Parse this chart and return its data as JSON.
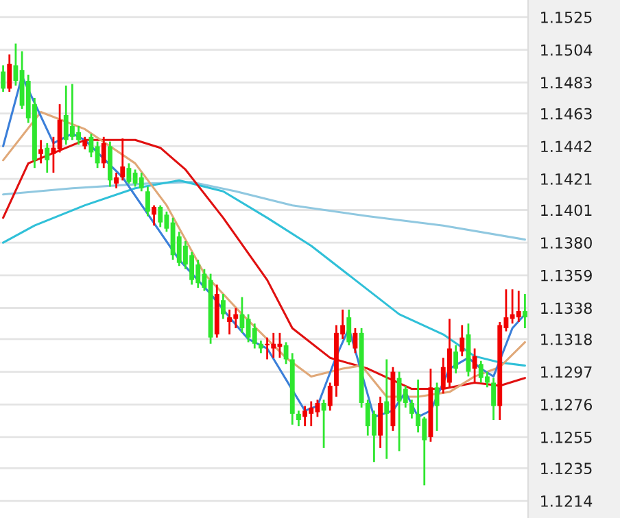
{
  "chart_data": {
    "type": "candlestick",
    "categories": [
      null,
      null,
      null,
      null,
      null,
      null,
      null,
      null,
      null,
      null,
      null,
      null,
      null,
      null,
      null,
      null,
      null,
      null,
      null,
      null,
      null,
      null,
      null,
      null,
      null,
      null,
      null,
      null,
      null,
      null,
      null,
      null,
      null,
      null,
      null,
      null,
      null,
      null,
      null,
      null,
      null,
      null,
      null,
      null,
      null,
      null,
      null,
      null,
      null,
      null,
      null,
      null,
      null,
      null,
      null,
      null,
      null,
      null,
      null,
      null,
      null,
      null,
      null,
      null,
      null,
      null,
      null,
      null,
      null,
      null,
      null,
      null,
      null,
      null,
      null,
      null,
      null,
      null,
      null,
      null,
      null,
      null,
      null,
      null
    ],
    "ohlc": [
      [
        1.149,
        1.1494,
        1.1477,
        1.1479
      ],
      [
        1.1479,
        1.1501,
        1.1477,
        1.1495
      ],
      [
        1.1494,
        1.1508,
        1.1481,
        1.1484
      ],
      [
        1.1491,
        1.1503,
        1.1466,
        1.1468
      ],
      [
        1.1484,
        1.1488,
        1.1457,
        1.146
      ],
      [
        1.1469,
        1.1473,
        1.1428,
        1.1433
      ],
      [
        1.1437,
        1.1446,
        1.1431,
        1.144
      ],
      [
        1.1441,
        1.1444,
        1.1425,
        1.1433
      ],
      [
        1.1437,
        1.1448,
        1.1425,
        1.1441
      ],
      [
        1.144,
        1.1469,
        1.1438,
        1.1459
      ],
      [
        1.1462,
        1.1481,
        1.1443,
        1.1446
      ],
      [
        1.1455,
        1.1482,
        1.1446,
        1.1448
      ],
      [
        1.1451,
        1.1455,
        1.1443,
        1.1446
      ],
      [
        1.1442,
        1.1448,
        1.144,
        1.1446
      ],
      [
        1.1448,
        1.145,
        1.1435,
        1.1438
      ],
      [
        1.1442,
        1.1445,
        1.1428,
        1.1431
      ],
      [
        1.1431,
        1.1448,
        1.1428,
        1.1444
      ],
      [
        1.1442,
        1.1445,
        1.1416,
        1.142
      ],
      [
        1.1418,
        1.1425,
        1.1415,
        1.1422
      ],
      [
        1.1422,
        1.1447,
        1.142,
        1.1429
      ],
      [
        1.1428,
        1.1431,
        1.1418,
        1.1419
      ],
      [
        1.1425,
        1.1427,
        1.1416,
        1.1418
      ],
      [
        1.1422,
        1.1425,
        1.1413,
        1.1415
      ],
      [
        1.1413,
        1.1416,
        1.1397,
        1.14
      ],
      [
        1.1398,
        1.1404,
        1.1391,
        1.1403
      ],
      [
        1.1403,
        1.1404,
        1.139,
        1.1393
      ],
      [
        1.1398,
        1.14,
        1.1387,
        1.1389
      ],
      [
        1.1393,
        1.1396,
        1.1369,
        1.1372
      ],
      [
        1.1384,
        1.1387,
        1.1365,
        1.1367
      ],
      [
        1.1378,
        1.1381,
        1.1363,
        1.1366
      ],
      [
        1.1372,
        1.1374,
        1.1353,
        1.1356
      ],
      [
        1.1366,
        1.1369,
        1.1351,
        1.1354
      ],
      [
        1.136,
        1.1363,
        1.1349,
        1.1351
      ],
      [
        1.1356,
        1.136,
        1.1315,
        1.1319
      ],
      [
        1.1321,
        1.1353,
        1.1319,
        1.1347
      ],
      [
        1.1343,
        1.1347,
        1.1331,
        1.1334
      ],
      [
        1.1329,
        1.1337,
        1.1321,
        1.1332
      ],
      [
        1.1331,
        1.1338,
        1.1325,
        1.1334
      ],
      [
        1.1334,
        1.1345,
        1.1322,
        1.1325
      ],
      [
        1.1331,
        1.1334,
        1.1316,
        1.1319
      ],
      [
        1.1325,
        1.1328,
        1.1312,
        1.1315
      ],
      [
        1.1315,
        1.1317,
        1.1309,
        1.1312
      ],
      [
        1.1314,
        1.1319,
        1.1305,
        1.1315
      ],
      [
        1.1312,
        1.1322,
        1.1306,
        1.1315
      ],
      [
        1.1313,
        1.1322,
        1.1306,
        1.1315
      ],
      [
        1.1314,
        1.1316,
        1.1302,
        1.1305
      ],
      [
        1.1305,
        1.1309,
        1.1263,
        1.127
      ],
      [
        1.127,
        1.1272,
        1.1262,
        1.1266
      ],
      [
        1.1268,
        1.1275,
        1.1262,
        1.1272
      ],
      [
        1.127,
        1.1278,
        1.1262,
        1.1274
      ],
      [
        1.1271,
        1.1279,
        1.1268,
        1.1277
      ],
      [
        1.1277,
        1.1279,
        1.1248,
        1.1272
      ],
      [
        1.1275,
        1.129,
        1.1272,
        1.1288
      ],
      [
        1.1288,
        1.1327,
        1.1281,
        1.1322
      ],
      [
        1.1321,
        1.1337,
        1.1318,
        1.1327
      ],
      [
        1.1332,
        1.1337,
        1.1314,
        1.1316
      ],
      [
        1.1312,
        1.1325,
        1.1309,
        1.1322
      ],
      [
        1.1322,
        1.1325,
        1.1274,
        1.1277
      ],
      [
        1.1277,
        1.1279,
        1.1256,
        1.1262
      ],
      [
        1.127,
        1.1272,
        1.1239,
        1.1256
      ],
      [
        1.1256,
        1.1281,
        1.1248,
        1.1277
      ],
      [
        1.1278,
        1.1305,
        1.1241,
        1.127
      ],
      [
        1.1262,
        1.13,
        1.1259,
        1.1297
      ],
      [
        1.1293,
        1.1297,
        1.1246,
        1.1278
      ],
      [
        1.1286,
        1.1288,
        1.1274,
        1.1277
      ],
      [
        1.1277,
        1.1279,
        1.1267,
        1.127
      ],
      [
        1.127,
        1.1292,
        1.1258,
        1.1262
      ],
      [
        1.1267,
        1.1268,
        1.1224,
        1.1253
      ],
      [
        1.1255,
        1.1299,
        1.1252,
        1.1287
      ],
      [
        1.1287,
        1.129,
        1.1259,
        1.1275
      ],
      [
        1.1286,
        1.1306,
        1.1283,
        1.13
      ],
      [
        1.129,
        1.1331,
        1.1287,
        1.1312
      ],
      [
        1.131,
        1.1314,
        1.1296,
        1.1299
      ],
      [
        1.131,
        1.1327,
        1.1307,
        1.1319
      ],
      [
        1.1321,
        1.1328,
        1.1294,
        1.1297
      ],
      [
        1.1299,
        1.1312,
        1.129,
        1.1307
      ],
      [
        1.1302,
        1.1304,
        1.129,
        1.1293
      ],
      [
        1.1294,
        1.1297,
        1.1287,
        1.129
      ],
      [
        1.129,
        1.1293,
        1.1266,
        1.1275
      ],
      [
        1.1275,
        1.1329,
        1.1266,
        1.1327
      ],
      [
        1.1325,
        1.135,
        1.1323,
        1.1332
      ],
      [
        1.1331,
        1.135,
        1.1328,
        1.1334
      ],
      [
        1.1332,
        1.1349,
        1.1329,
        1.1336
      ],
      [
        1.1336,
        1.1347,
        1.1325,
        1.1332
      ]
    ],
    "colors": [
      "#2ee62e",
      "#f00000",
      "#2ee62e",
      "#2ee62e",
      "#2ee62e",
      "#2ee62e",
      "#f00000",
      "#2ee62e",
      "#f00000",
      "#f00000",
      "#2ee62e",
      "#2ee62e",
      "#2ee62e",
      "#f00000",
      "#2ee62e",
      "#2ee62e",
      "#f00000",
      "#2ee62e",
      "#f00000",
      "#f00000",
      "#2ee62e",
      "#2ee62e",
      "#2ee62e",
      "#2ee62e",
      "#f00000",
      "#2ee62e",
      "#2ee62e",
      "#2ee62e",
      "#2ee62e",
      "#2ee62e",
      "#2ee62e",
      "#2ee62e",
      "#2ee62e",
      "#2ee62e",
      "#f00000",
      "#2ee62e",
      "#f00000",
      "#f00000",
      "#2ee62e",
      "#2ee62e",
      "#2ee62e",
      "#2ee62e",
      "#f00000",
      "#f00000",
      "#f00000",
      "#2ee62e",
      "#2ee62e",
      "#2ee62e",
      "#f00000",
      "#f00000",
      "#f00000",
      "#2ee62e",
      "#f00000",
      "#f00000",
      "#f00000",
      "#2ee62e",
      "#f00000",
      "#2ee62e",
      "#2ee62e",
      "#2ee62e",
      "#f00000",
      "#2ee62e",
      "#f00000",
      "#2ee62e",
      "#2ee62e",
      "#2ee62e",
      "#2ee62e",
      "#2ee62e",
      "#f00000",
      "#2ee62e",
      "#f00000",
      "#f00000",
      "#2ee62e",
      "#f00000",
      "#2ee62e",
      "#f00000",
      "#2ee62e",
      "#2ee62e",
      "#2ee62e",
      "#f00000",
      "#f00000",
      "#f00000",
      "#f00000",
      "#2ee62e"
    ],
    "series": [
      {
        "type": "line",
        "color": "#90c8e0",
        "values": [
          1.1411,
          null,
          null,
          null,
          null,
          null,
          null,
          null,
          null,
          null,
          null,
          1.1415,
          null,
          null,
          null,
          null,
          null,
          null,
          null,
          null,
          null,
          null,
          null,
          1.1418,
          null,
          null,
          null,
          null,
          null,
          null,
          1.1419,
          null,
          null,
          null,
          null,
          null,
          null,
          1.1413,
          null,
          null,
          null,
          null,
          null,
          null,
          null,
          null,
          1.1404,
          null,
          null,
          null,
          null,
          null,
          null,
          null,
          null,
          null,
          null,
          null,
          1.1397,
          null,
          null,
          null,
          null,
          null,
          null,
          null,
          null,
          null,
          null,
          null,
          1.1391,
          null,
          null,
          null,
          null,
          null,
          null,
          null,
          null,
          null,
          null,
          null,
          null,
          1.1382
        ]
      },
      {
        "type": "line",
        "color": "#30c0d8",
        "values": [
          1.138,
          null,
          null,
          null,
          null,
          1.1391,
          null,
          null,
          null,
          null,
          null,
          null,
          null,
          1.1404,
          null,
          null,
          null,
          null,
          null,
          null,
          null,
          1.1415,
          null,
          null,
          null,
          null,
          null,
          null,
          1.142,
          null,
          null,
          null,
          null,
          null,
          null,
          1.1413,
          null,
          null,
          null,
          null,
          null,
          null,
          1.1396,
          null,
          null,
          null,
          null,
          null,
          null,
          1.1378,
          null,
          null,
          null,
          null,
          null,
          null,
          1.1356,
          null,
          null,
          null,
          null,
          null,
          null,
          1.1334,
          null,
          null,
          null,
          null,
          null,
          null,
          1.1321,
          null,
          null,
          null,
          null,
          1.1307,
          null,
          null,
          null,
          1.1303,
          null,
          null,
          null,
          1.1301
        ]
      },
      {
        "type": "line",
        "color": "#e01010",
        "values": [
          1.1396,
          null,
          null,
          null,
          1.1431,
          null,
          null,
          null,
          null,
          null,
          null,
          null,
          null,
          1.1446,
          null,
          null,
          null,
          null,
          null,
          null,
          null,
          1.1446,
          null,
          null,
          null,
          1.1441,
          null,
          null,
          null,
          1.1427,
          null,
          null,
          null,
          null,
          null,
          1.1396,
          null,
          null,
          null,
          null,
          null,
          null,
          1.1356,
          null,
          null,
          null,
          1.1325,
          null,
          null,
          null,
          null,
          null,
          1.1306,
          null,
          null,
          null,
          null,
          null,
          1.1299,
          null,
          null,
          null,
          null,
          null,
          null,
          1.1286,
          null,
          null,
          null,
          null,
          1.1286,
          null,
          null,
          null,
          null,
          1.129,
          null,
          null,
          null,
          1.1288,
          null,
          null,
          null,
          1.1293
        ]
      },
      {
        "type": "line",
        "color": "#e0a878",
        "values": [
          1.1433,
          null,
          null,
          null,
          null,
          null,
          1.1464,
          null,
          null,
          null,
          null,
          null,
          null,
          1.1453,
          null,
          null,
          null,
          null,
          null,
          null,
          null,
          1.1431,
          null,
          null,
          null,
          null,
          1.1404,
          null,
          null,
          null,
          null,
          null,
          1.136,
          null,
          null,
          null,
          null,
          null,
          1.1334,
          null,
          null,
          null,
          null,
          null,
          null,
          1.1306,
          null,
          null,
          null,
          1.1294,
          null,
          null,
          null,
          null,
          1.1299,
          null,
          null,
          1.1301,
          null,
          null,
          null,
          1.1281,
          null,
          null,
          null,
          null,
          1.1281,
          null,
          null,
          null,
          null,
          1.1284,
          null,
          null,
          null,
          1.1294,
          null,
          null,
          null,
          1.13,
          null,
          null,
          null,
          1.1316
        ]
      },
      {
        "type": "line",
        "color": "#3b7fd9",
        "values": [
          1.1442,
          null,
          null,
          1.1487,
          null,
          null,
          null,
          null,
          1.1444,
          null,
          null,
          1.145,
          null,
          1.1446,
          null,
          null,
          null,
          null,
          null,
          1.1422,
          null,
          null,
          null,
          null,
          null,
          null,
          null,
          null,
          1.1369,
          null,
          null,
          null,
          null,
          1.1347,
          null,
          null,
          1.1332,
          null,
          null,
          1.1318,
          null,
          null,
          1.1312,
          null,
          null,
          null,
          null,
          null,
          1.1272,
          null,
          1.1275,
          null,
          null,
          1.1307,
          null,
          1.1325,
          null,
          null,
          null,
          1.1268,
          null,
          null,
          1.1272,
          null,
          1.1284,
          null,
          1.1268,
          null,
          1.1272,
          null,
          null,
          1.1299,
          null,
          null,
          1.1306,
          null,
          1.1299,
          null,
          1.1294,
          null,
          null,
          1.1325,
          null,
          1.1334
        ]
      }
    ],
    "ylim": [
      1.1203,
      1.1536
    ],
    "yticks": [
      1.1214,
      1.1235,
      1.1255,
      1.1276,
      1.1297,
      1.1318,
      1.1338,
      1.1359,
      {
        "value": 1.138,
        "label": "1.1380"
      },
      1.1401,
      1.1421,
      1.1442,
      1.1463,
      1.1483,
      1.1504,
      1.1525
    ],
    "grid": "y",
    "tick_labels": "y"
  }
}
